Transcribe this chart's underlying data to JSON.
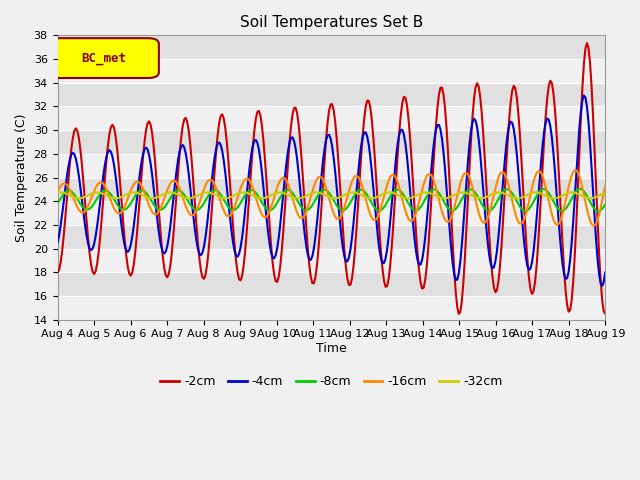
{
  "title": "Soil Temperatures Set B",
  "xlabel": "Time",
  "ylabel": "Soil Temperature (C)",
  "ylim": [
    14,
    38
  ],
  "annotation": "BC_met",
  "fig_bg": "#f0f0f0",
  "plot_bg": "#e0e0e0",
  "band_color": "#f0f0f0",
  "series": {
    "-2cm": {
      "color": "#cc0000",
      "lw": 1.5
    },
    "-4cm": {
      "color": "#0000cc",
      "lw": 1.5
    },
    "-8cm": {
      "color": "#00cc00",
      "lw": 1.5
    },
    "-16cm": {
      "color": "#ff8800",
      "lw": 1.5
    },
    "-32cm": {
      "color": "#cccc00",
      "lw": 1.5
    }
  },
  "xtick_labels": [
    "Aug 4",
    "Aug 5",
    "Aug 6",
    "Aug 7",
    "Aug 8",
    "Aug 9",
    "Aug 10",
    "Aug 11",
    "Aug 12",
    "Aug 13",
    "Aug 14",
    "Aug 15",
    "Aug 16",
    "Aug 17",
    "Aug 18",
    "Aug 19"
  ],
  "ytick_vals": [
    14,
    16,
    18,
    20,
    22,
    24,
    26,
    28,
    30,
    32,
    34,
    36,
    38
  ]
}
